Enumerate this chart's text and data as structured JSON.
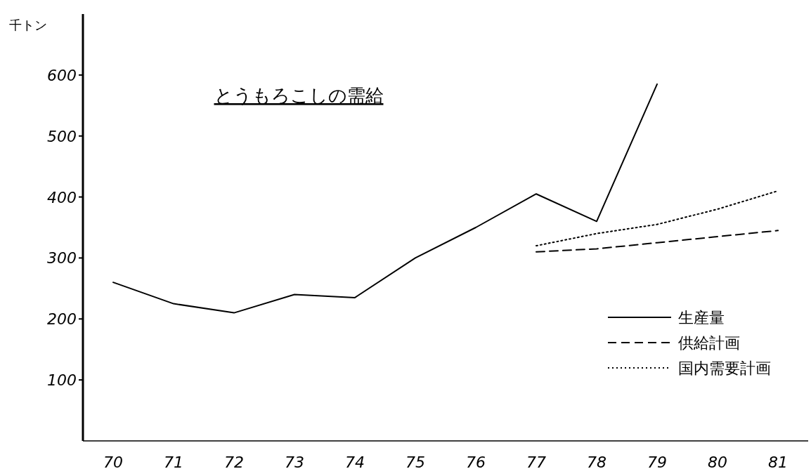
{
  "chart_data": {
    "type": "line",
    "title": "とうもろこしの需給",
    "ylabel": "千トン",
    "categories": [
      "70",
      "71",
      "72",
      "73",
      "74",
      "75",
      "76",
      "77",
      "78",
      "79",
      "80",
      "81"
    ],
    "ylim": [
      0,
      700
    ],
    "yticks": [
      100,
      200,
      300,
      400,
      500,
      600
    ],
    "grid": false,
    "legend": "bottom right",
    "marker": "none",
    "series": [
      {
        "name": "生産量",
        "color": "#000000",
        "line_style": "solid",
        "values": [
          260,
          225,
          210,
          240,
          235,
          300,
          350,
          405,
          360,
          585,
          null,
          null
        ]
      },
      {
        "name": "供給計画",
        "color": "#000000",
        "line_style": "dashed",
        "values": [
          null,
          null,
          null,
          null,
          null,
          null,
          null,
          310,
          315,
          325,
          335,
          345
        ]
      },
      {
        "name": "国内需要計画",
        "color": "#000000",
        "line_style": "dotted",
        "values": [
          null,
          null,
          null,
          null,
          null,
          null,
          null,
          320,
          340,
          355,
          380,
          410
        ]
      }
    ]
  }
}
